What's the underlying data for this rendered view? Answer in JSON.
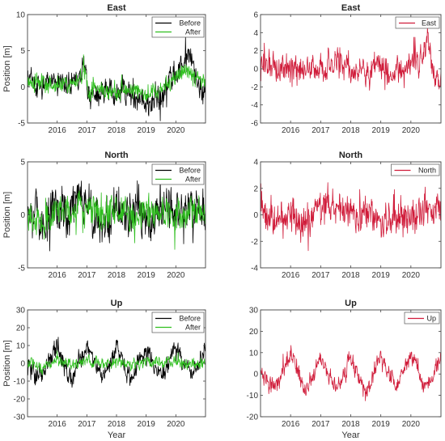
{
  "figure": {
    "background": "#ffffff"
  },
  "colors": {
    "before": "#000000",
    "after": "#2fbf1f",
    "single": "#d01c3a"
  },
  "chart_data": [
    {
      "id": "east-compare",
      "type": "line",
      "title": "East",
      "xlabel": "",
      "ylabel": "Position [m]",
      "xlim": [
        2015.0,
        2021.0
      ],
      "ylim": [
        -5,
        10
      ],
      "yticks": [
        -5,
        0,
        5,
        10
      ],
      "xticks": [
        2016,
        2017,
        2018,
        2019,
        2020
      ],
      "xtick_labels": [
        "2016",
        "2017",
        "2018",
        "2019",
        "2020"
      ],
      "legend": "top-right",
      "series": [
        {
          "name": "Before",
          "color": "#000000",
          "x": [
            2015.0,
            2015.25,
            2015.5,
            2015.75,
            2016.0,
            2016.25,
            2016.5,
            2016.75,
            2016.9,
            2017.05,
            2017.25,
            2017.5,
            2017.75,
            2018.0,
            2018.25,
            2018.5,
            2018.75,
            2019.0,
            2019.25,
            2019.5,
            2019.75,
            2020.0,
            2020.25,
            2020.5,
            2020.75,
            2021.0
          ],
          "y": [
            2.5,
            0.5,
            -0.5,
            1.0,
            0.5,
            0.0,
            0.5,
            1.5,
            3.5,
            -1.5,
            -2.0,
            -1.0,
            -0.5,
            -1.5,
            0.0,
            -1.0,
            -1.5,
            -2.5,
            -2.0,
            -1.5,
            0.0,
            2.0,
            3.5,
            4.5,
            0.0,
            -1.0
          ],
          "noise": 1.6,
          "seed": 11
        },
        {
          "name": "After",
          "color": "#2fbf1f",
          "x": [
            2015.0,
            2015.5,
            2016.0,
            2016.5,
            2016.9,
            2017.05,
            2017.5,
            2018.0,
            2018.5,
            2019.0,
            2019.5,
            2020.0,
            2020.5,
            2021.0
          ],
          "y": [
            1.0,
            0.5,
            0.5,
            0.5,
            2.0,
            -0.5,
            -0.5,
            -0.5,
            -0.5,
            -1.0,
            -0.5,
            1.5,
            2.5,
            0.5
          ],
          "noise": 1.0,
          "seed": 23
        }
      ]
    },
    {
      "id": "east-single",
      "type": "line",
      "title": "East",
      "xlabel": "",
      "ylabel": "",
      "xlim": [
        2015.0,
        2021.0
      ],
      "ylim": [
        -6,
        6
      ],
      "yticks": [
        -6,
        -4,
        -2,
        0,
        2,
        4,
        6
      ],
      "xticks": [
        2016,
        2017,
        2018,
        2019,
        2020
      ],
      "xtick_labels": [
        "2016",
        "2017",
        "2018",
        "2019",
        "2020"
      ],
      "legend": "top-right",
      "series": [
        {
          "name": "East",
          "color": "#d01c3a",
          "x": [
            2015.0,
            2015.5,
            2016.0,
            2016.5,
            2017.0,
            2017.5,
            2018.0,
            2018.5,
            2019.0,
            2019.5,
            2020.0,
            2020.4,
            2020.55,
            2020.75,
            2021.0
          ],
          "y": [
            1.0,
            0.0,
            0.0,
            -0.5,
            0.5,
            0.5,
            0.0,
            -0.5,
            0.0,
            -0.5,
            0.5,
            1.5,
            3.5,
            0.0,
            -1.0
          ],
          "noise": 1.4,
          "seed": 37
        }
      ]
    },
    {
      "id": "north-compare",
      "type": "line",
      "title": "North",
      "xlabel": "",
      "ylabel": "Position [m]",
      "xlim": [
        2015.0,
        2021.0
      ],
      "ylim": [
        -5,
        5
      ],
      "yticks": [
        -5,
        0,
        5
      ],
      "xticks": [
        2016,
        2017,
        2018,
        2019,
        2020
      ],
      "xtick_labels": [
        "2016",
        "2017",
        "2018",
        "2019",
        "2020"
      ],
      "legend": "top-right",
      "series": [
        {
          "name": "Before",
          "color": "#000000",
          "x": [
            2015.0,
            2015.3,
            2015.6,
            2016.0,
            2016.4,
            2016.8,
            2017.2,
            2017.6,
            2018.0,
            2018.4,
            2018.8,
            2019.2,
            2019.6,
            2020.0,
            2020.4,
            2020.8,
            2021.0
          ],
          "y": [
            1.5,
            0.5,
            -1.5,
            1.0,
            0.0,
            2.0,
            0.5,
            -1.0,
            0.5,
            -0.5,
            0.0,
            -0.5,
            0.5,
            0.0,
            0.5,
            0.5,
            0.0
          ],
          "noise": 1.8,
          "seed": 53
        },
        {
          "name": "After",
          "color": "#2fbf1f",
          "x": [
            2015.0,
            2015.5,
            2016.0,
            2016.5,
            2017.0,
            2017.5,
            2018.0,
            2018.5,
            2019.0,
            2019.5,
            2020.0,
            2020.5,
            2021.0
          ],
          "y": [
            0.5,
            -1.0,
            0.5,
            0.5,
            1.0,
            0.0,
            0.0,
            0.0,
            0.5,
            0.5,
            0.0,
            0.5,
            0.0
          ],
          "noise": 1.3,
          "seed": 67
        }
      ]
    },
    {
      "id": "north-single",
      "type": "line",
      "title": "North",
      "xlabel": "",
      "ylabel": "",
      "xlim": [
        2015.0,
        2021.0
      ],
      "ylim": [
        -4,
        4
      ],
      "yticks": [
        -4,
        -2,
        0,
        2,
        4
      ],
      "xticks": [
        2016,
        2017,
        2018,
        2019,
        2020
      ],
      "xtick_labels": [
        "2016",
        "2017",
        "2018",
        "2019",
        "2020"
      ],
      "legend": "top-right",
      "series": [
        {
          "name": "North",
          "color": "#d01c3a",
          "x": [
            2015.0,
            2015.1,
            2015.5,
            2016.0,
            2016.5,
            2017.0,
            2017.5,
            2018.0,
            2018.5,
            2019.0,
            2019.5,
            2020.0,
            2020.5,
            2021.0
          ],
          "y": [
            2.0,
            0.5,
            -0.5,
            0.0,
            -0.5,
            0.5,
            0.5,
            0.0,
            0.0,
            -0.5,
            -0.5,
            0.0,
            0.5,
            0.0
          ],
          "noise": 1.2,
          "seed": 79
        }
      ]
    },
    {
      "id": "up-compare",
      "type": "line",
      "title": "Up",
      "xlabel": "Year",
      "ylabel": "Position [m]",
      "xlim": [
        2015.0,
        2021.0
      ],
      "ylim": [
        -30,
        30
      ],
      "yticks": [
        -30,
        -20,
        -10,
        0,
        10,
        20,
        30
      ],
      "xticks": [
        2016,
        2017,
        2018,
        2019,
        2020
      ],
      "xtick_labels": [
        "2016",
        "2017",
        "2018",
        "2019",
        "2020"
      ],
      "legend": "top-right",
      "series": [
        {
          "name": "Before",
          "color": "#000000",
          "x": [
            2015.0,
            2015.25,
            2015.5,
            2015.75,
            2016.0,
            2016.25,
            2016.5,
            2016.75,
            2017.0,
            2017.25,
            2017.5,
            2017.75,
            2018.0,
            2018.25,
            2018.5,
            2018.75,
            2019.0,
            2019.25,
            2019.5,
            2019.75,
            2020.0,
            2020.25,
            2020.5,
            2020.75,
            2021.0
          ],
          "y": [
            3,
            -5,
            -8,
            2,
            10,
            -2,
            -10,
            0,
            10,
            2,
            -8,
            0,
            8,
            0,
            -10,
            0,
            8,
            0,
            -6,
            0,
            10,
            0,
            -6,
            0,
            6
          ],
          "noise": 4.5,
          "seed": 97
        },
        {
          "name": "After",
          "color": "#2fbf1f",
          "x": [
            2015.0,
            2015.5,
            2016.0,
            2016.5,
            2017.0,
            2017.5,
            2018.0,
            2018.5,
            2019.0,
            2019.5,
            2020.0,
            2020.5,
            2021.0
          ],
          "y": [
            0,
            -3,
            2,
            -1,
            2,
            -1,
            1,
            -1,
            1,
            0,
            1,
            0,
            0
          ],
          "noise": 2.8,
          "seed": 103
        }
      ]
    },
    {
      "id": "up-single",
      "type": "line",
      "title": "Up",
      "xlabel": "Year",
      "ylabel": "",
      "xlim": [
        2015.0,
        2021.0
      ],
      "ylim": [
        -20,
        30
      ],
      "yticks": [
        -20,
        -10,
        0,
        10,
        20,
        30
      ],
      "xticks": [
        2016,
        2017,
        2018,
        2019,
        2020
      ],
      "xtick_labels": [
        "2016",
        "2017",
        "2018",
        "2019",
        "2020"
      ],
      "legend": "top-right",
      "series": [
        {
          "name": "Up",
          "color": "#d01c3a",
          "x": [
            2015.0,
            2015.25,
            2015.5,
            2015.75,
            2016.0,
            2016.25,
            2016.5,
            2016.75,
            2017.0,
            2017.25,
            2017.5,
            2017.75,
            2018.0,
            2018.25,
            2018.5,
            2018.75,
            2019.0,
            2019.25,
            2019.5,
            2019.75,
            2020.0,
            2020.25,
            2020.5,
            2020.75,
            2021.0
          ],
          "y": [
            2,
            -4,
            -6,
            2,
            10,
            0,
            -8,
            0,
            8,
            0,
            -8,
            0,
            8,
            0,
            -10,
            0,
            8,
            0,
            -6,
            0,
            10,
            0,
            -6,
            0,
            6
          ],
          "noise": 3.5,
          "seed": 131
        }
      ]
    }
  ]
}
